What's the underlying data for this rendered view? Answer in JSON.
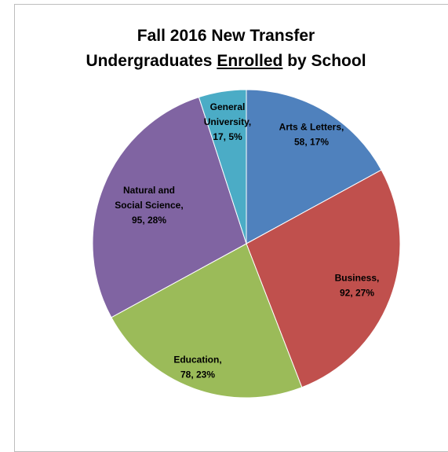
{
  "chart_data": {
    "type": "pie",
    "title": [
      "Fall 2016 New Transfer",
      [
        "Undergraduates",
        "Enrolled",
        "by School"
      ]
    ],
    "values": [
      58,
      92,
      78,
      95,
      17
    ],
    "value_labels": [
      [
        "Arts & Letters,",
        "58, 17%"
      ],
      [
        "Business,",
        "92, 27%"
      ],
      [
        "Education,",
        "78, 23%"
      ],
      [
        "Natural and",
        "Social Science,",
        "95, 28%"
      ],
      [
        "General",
        "University,",
        "17, 5%"
      ]
    ],
    "colors": [
      "#4f81bd",
      "#c0504d",
      "#9bbb59",
      "#8064a2",
      "#4bacc6"
    ],
    "start_angle": 0,
    "direction": "clockwise"
  }
}
